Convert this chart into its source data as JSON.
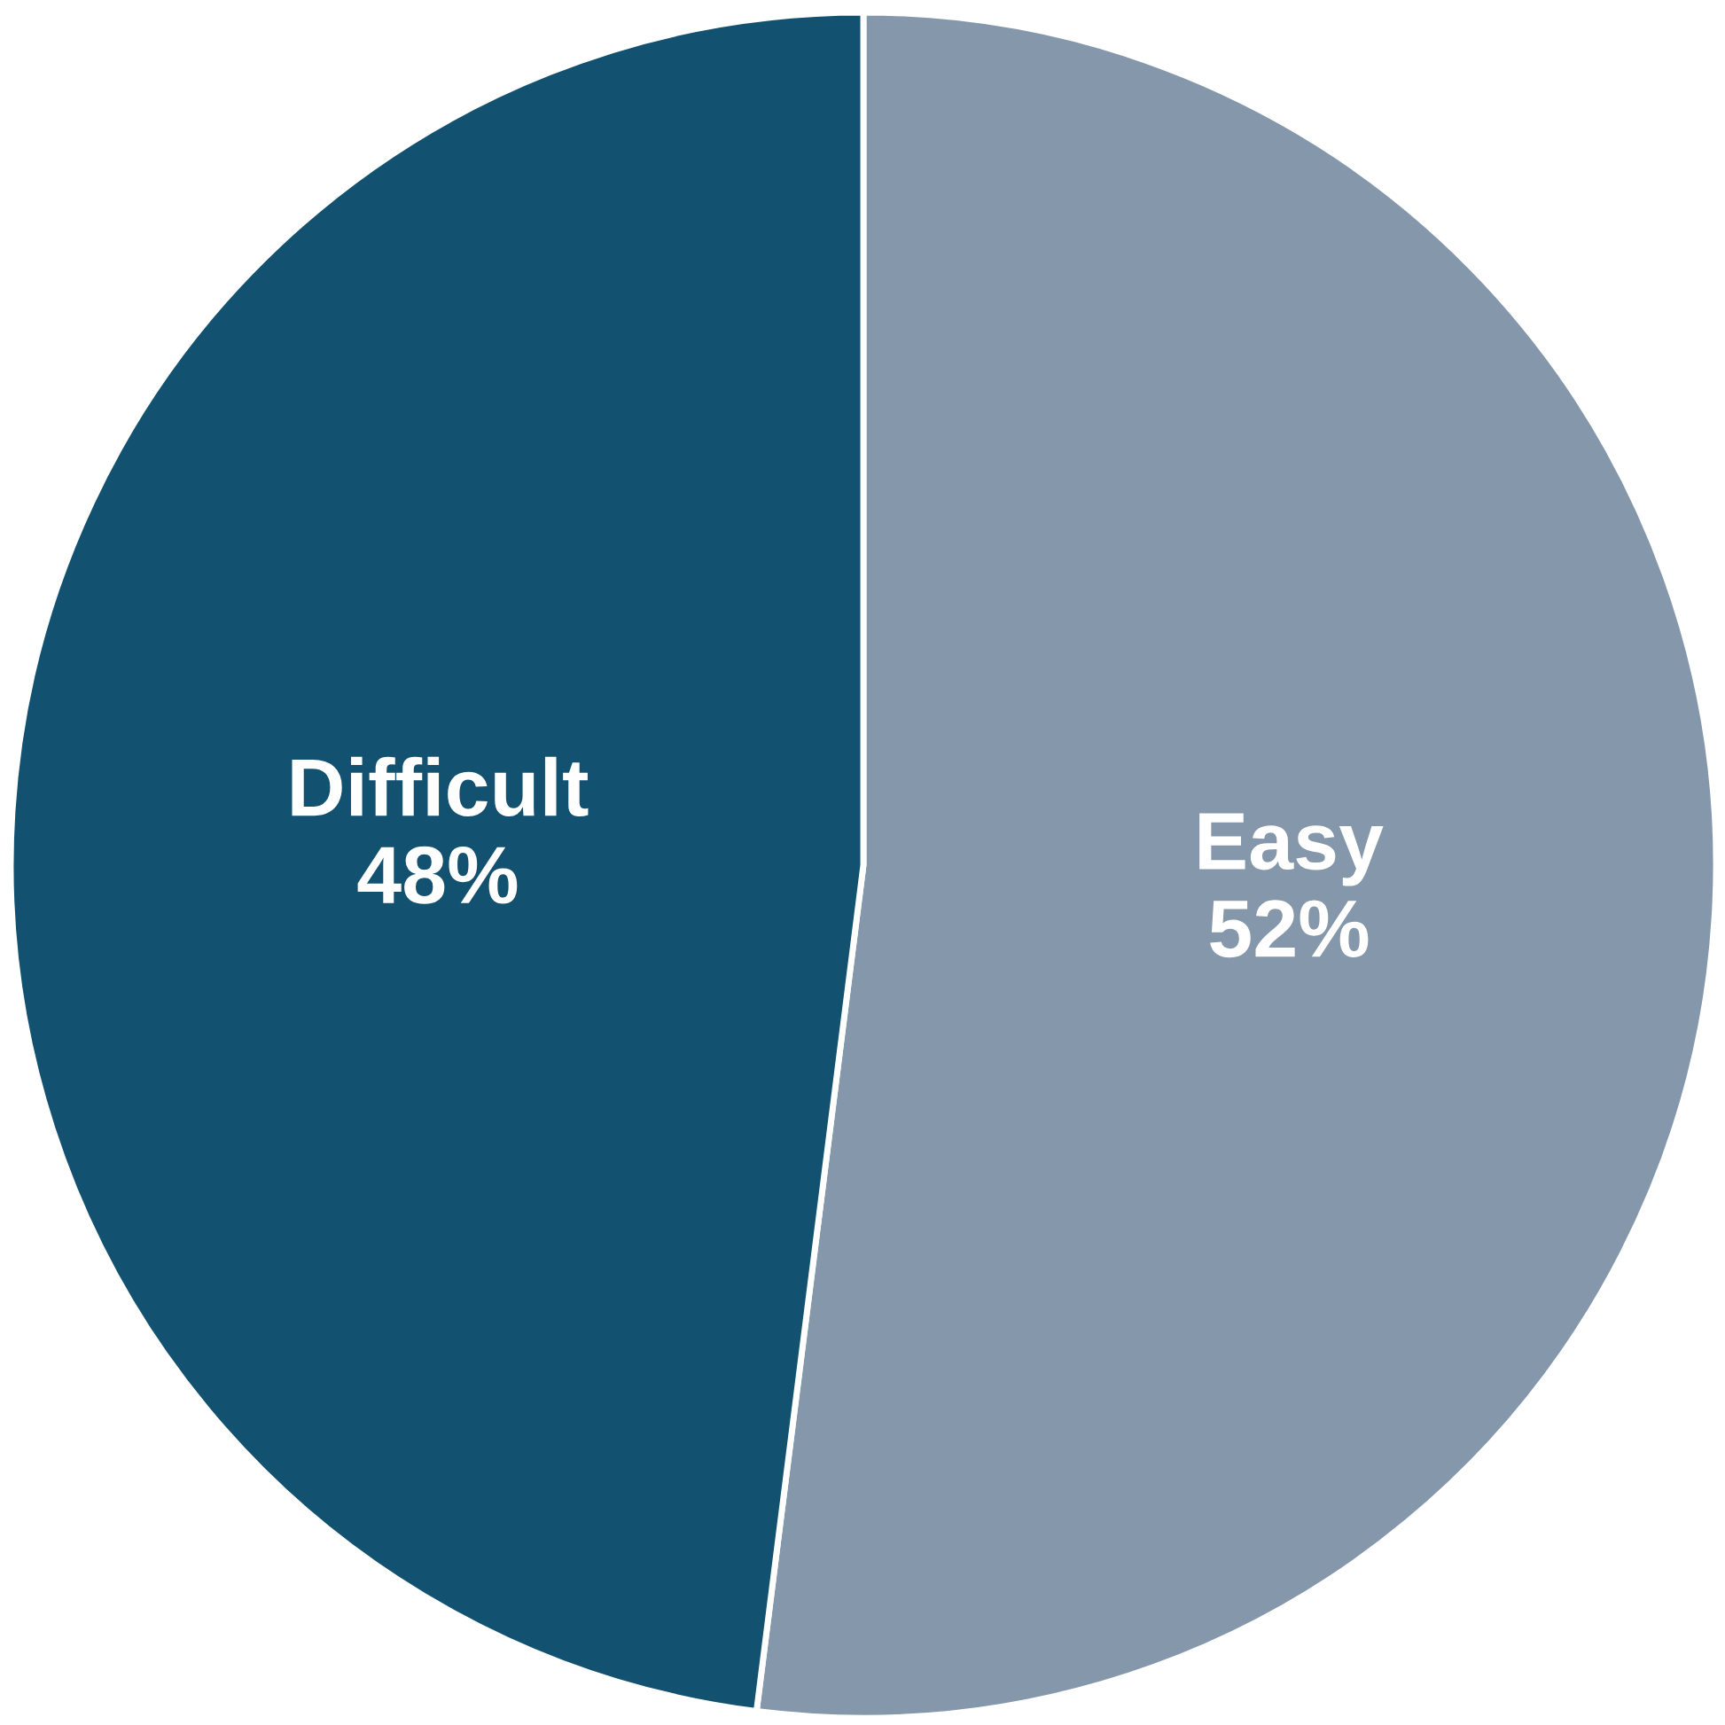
{
  "chart_data": {
    "type": "pie",
    "categories": [
      "Easy",
      "Difficult"
    ],
    "values": [
      52,
      48
    ],
    "colors": [
      "#8597aa",
      "#12516f"
    ],
    "value_labels": [
      "52%",
      "48%"
    ],
    "legend": false
  }
}
